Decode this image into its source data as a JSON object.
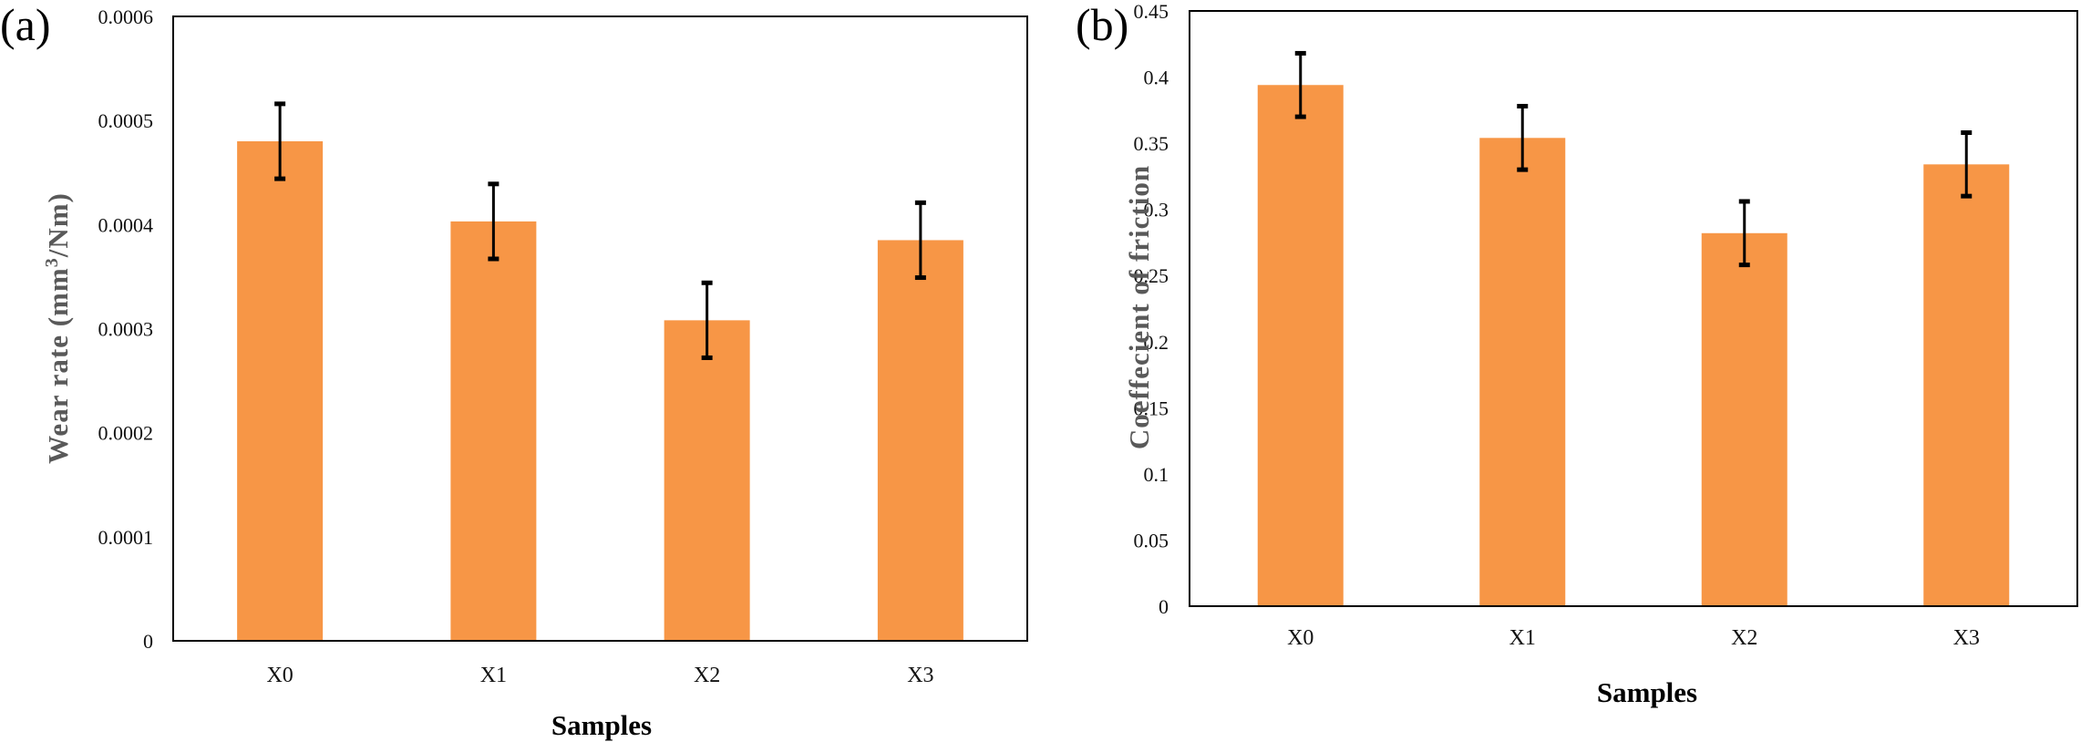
{
  "colors": {
    "bar": "#F79646",
    "error_bar": "#000000",
    "frame": "#000000"
  },
  "chart_data": [
    {
      "panel_label": "(a)",
      "type": "bar",
      "categories": [
        "X0",
        "X1",
        "X2",
        "X3"
      ],
      "values": [
        0.00048,
        0.000403,
        0.000308,
        0.000385
      ],
      "error": [
        3.6e-05,
        3.6e-05,
        3.6e-05,
        3.6e-05
      ],
      "ylim": [
        0,
        0.0006
      ],
      "yticks": [
        "0",
        "0.0001",
        "0.0002",
        "0.0003",
        "0.0004",
        "0.0005",
        "0.0006"
      ],
      "xlabel": "Samples",
      "ylabel_main": "Wear rate (mm",
      "ylabel_sup": "3",
      "ylabel_tail": "/Nm)"
    },
    {
      "panel_label": "(b)",
      "type": "bar",
      "categories": [
        "X0",
        "X1",
        "X2",
        "X3"
      ],
      "values": [
        0.394,
        0.354,
        0.282,
        0.334
      ],
      "error": [
        0.024,
        0.024,
        0.024,
        0.024
      ],
      "ylim": [
        0,
        0.45
      ],
      "yticks": [
        "0",
        "0.05",
        "0.1",
        "0.15",
        "0.2",
        "0.25",
        "0.3",
        "0.35",
        "0.4",
        "0.45"
      ],
      "xlabel": "Samples",
      "ylabel": "Coeffecient of friction"
    }
  ]
}
